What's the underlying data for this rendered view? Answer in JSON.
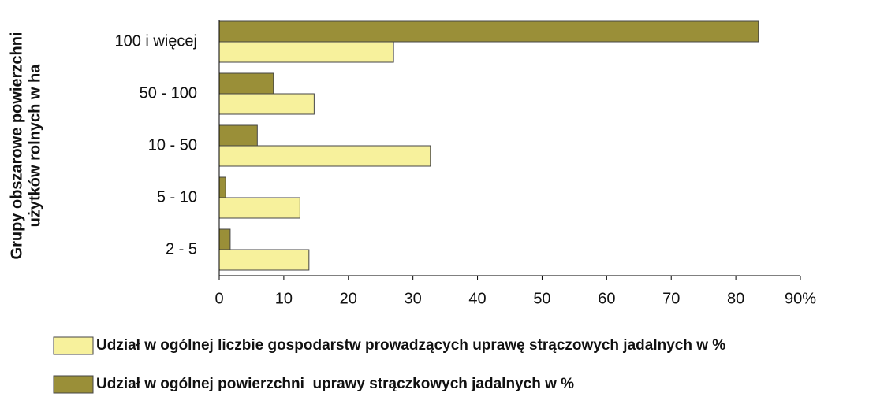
{
  "chart_data": {
    "type": "bar",
    "orientation": "horizontal",
    "ylabel": [
      "Grupy obszarowe powierzchni",
      "użytków rolnych w ha"
    ],
    "categories": [
      "100 i więcej",
      "50 - 100",
      "10 - 50",
      "5 - 10",
      "2 - 5"
    ],
    "series": [
      {
        "name": "Udział w ogólnej liczbie gospodarstw prowadzących uprawę strączowych jadalnych w %",
        "color": "#f7f19c",
        "values": [
          27.0,
          14.7,
          32.7,
          12.5,
          13.9
        ]
      },
      {
        "name": "Udział w ogólnej powierzchni  uprawy strączkowych jadalnych w %",
        "color": "#9a8f38",
        "values": [
          83.5,
          8.4,
          5.9,
          1.0,
          1.7
        ]
      }
    ],
    "xlim": [
      0,
      90
    ],
    "xticks": [
      0,
      10,
      20,
      30,
      40,
      50,
      60,
      70,
      80,
      {
        "value": 90,
        "label": "90%"
      }
    ],
    "legend": "bottom"
  }
}
